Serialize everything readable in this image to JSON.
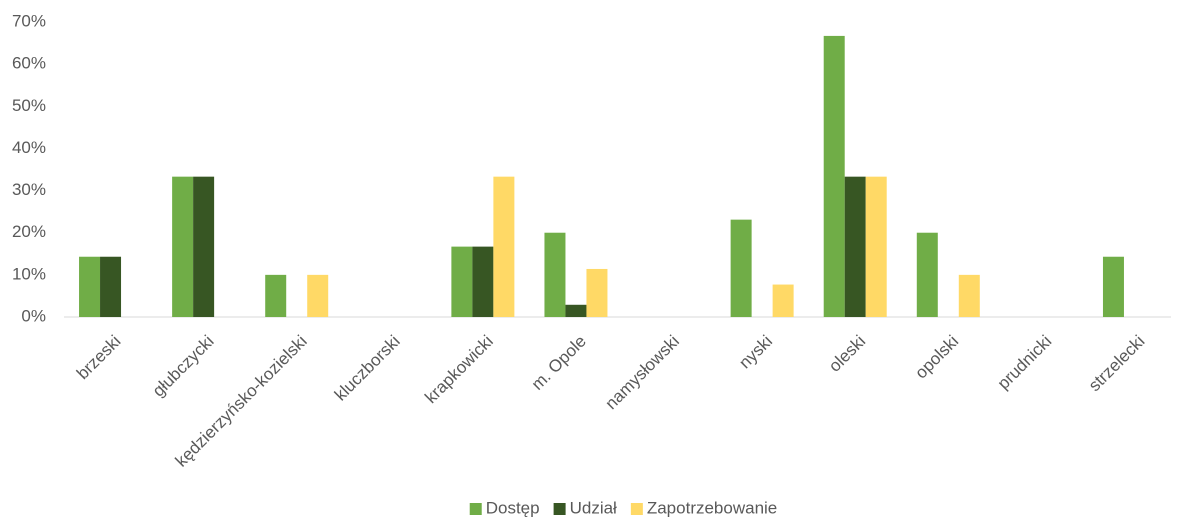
{
  "chart_data": {
    "type": "bar",
    "categories": [
      "brzeski",
      "głubczycki",
      "kędzierzyńsko-kozielski",
      "kluczborski",
      "krapkowicki",
      "m. Opole",
      "namysłowski",
      "nyski",
      "oleski",
      "opolski",
      "prudnicki",
      "strzelecki"
    ],
    "series": [
      {
        "name": "Dostęp",
        "color": "#70ad47",
        "values": [
          14.3,
          33.3,
          10,
          0,
          16.7,
          20,
          0,
          23.1,
          66.7,
          20,
          0,
          14.3
        ]
      },
      {
        "name": "Udział",
        "color": "#375623",
        "values": [
          14.3,
          33.3,
          0,
          0,
          16.7,
          2.9,
          0,
          0,
          33.3,
          0,
          0,
          0
        ]
      },
      {
        "name": "Zapotrzebowanie",
        "color": "#ffd966",
        "values": [
          0,
          0,
          10,
          0,
          33.3,
          11.4,
          0,
          7.7,
          33.3,
          10,
          0,
          0
        ]
      }
    ],
    "ylim": [
      0,
      70
    ],
    "yticks": [
      {
        "value": 0,
        "label": "0%"
      },
      {
        "value": 10,
        "label": "10%"
      },
      {
        "value": 20,
        "label": "20%"
      },
      {
        "value": 30,
        "label": "30%"
      },
      {
        "value": 40,
        "label": "40%"
      },
      {
        "value": 50,
        "label": "50%"
      },
      {
        "value": 60,
        "label": "60%"
      },
      {
        "value": 70,
        "label": "70%"
      }
    ],
    "grid": false,
    "legend": "bottom"
  }
}
